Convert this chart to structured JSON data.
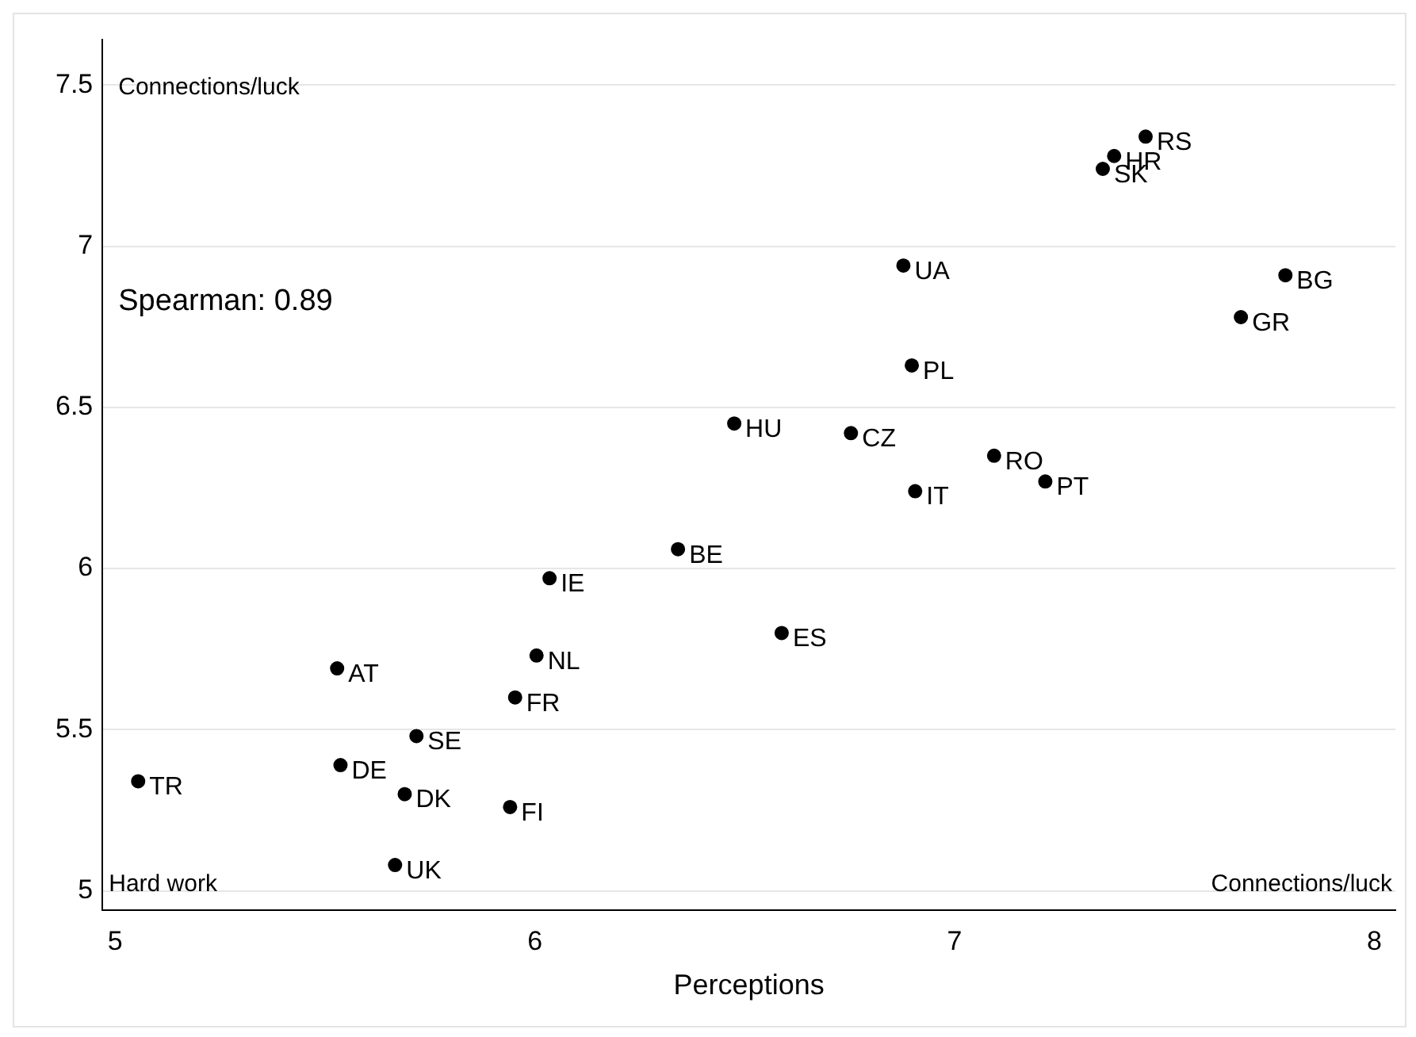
{
  "chart_data": {
    "type": "scatter",
    "xlabel": "Perceptions",
    "x": [
      7.455,
      7.38,
      7.353,
      6.878,
      7.788,
      7.682,
      6.898,
      6.475,
      6.753,
      7.094,
      7.216,
      6.906,
      6.341,
      6.035,
      6.588,
      6.004,
      5.529,
      5.953,
      5.718,
      5.537,
      5.055,
      5.69,
      5.941,
      5.667
    ],
    "values": [
      7.34,
      7.28,
      7.24,
      6.94,
      6.91,
      6.78,
      6.63,
      6.45,
      6.42,
      6.35,
      6.27,
      6.24,
      6.06,
      5.97,
      5.8,
      5.73,
      5.69,
      5.6,
      5.48,
      5.39,
      5.34,
      5.3,
      5.26,
      5.08
    ],
    "color": "#000000",
    "marker": "circle",
    "xlim": [
      4.97,
      8.05
    ],
    "xticks": [
      5,
      6,
      7,
      8
    ],
    "ylim": [
      4.94,
      7.64
    ],
    "yticks": [
      5,
      5.5,
      6,
      6.5,
      7,
      7.5
    ],
    "grid": "y",
    "annotations": [
      "Connections/luck",
      "Spearman: 0.89",
      "Hard work",
      "Connections/luck",
      {
        "text": "RS",
        "x": 7.455,
        "y": 7.34
      },
      {
        "text": "HR",
        "x": 7.38,
        "y": 7.28
      },
      {
        "text": "SK",
        "x": 7.353,
        "y": 7.24
      },
      {
        "text": "UA",
        "x": 6.878,
        "y": 6.94
      },
      {
        "text": "BG",
        "x": 7.788,
        "y": 6.91
      },
      {
        "text": "GR",
        "x": 7.682,
        "y": 6.78
      },
      {
        "text": "PL",
        "x": 6.898,
        "y": 6.63
      },
      {
        "text": "HU",
        "x": 6.475,
        "y": 6.45
      },
      {
        "text": "CZ",
        "x": 6.753,
        "y": 6.42
      },
      {
        "text": "RO",
        "x": 7.094,
        "y": 6.35
      },
      {
        "text": "PT",
        "x": 7.216,
        "y": 6.27
      },
      {
        "text": "IT",
        "x": 6.906,
        "y": 6.24
      },
      {
        "text": "BE",
        "x": 6.341,
        "y": 6.06
      },
      {
        "text": "IE",
        "x": 6.035,
        "y": 5.97
      },
      {
        "text": "ES",
        "x": 6.588,
        "y": 5.8
      },
      {
        "text": "NL",
        "x": 6.004,
        "y": 5.73
      },
      {
        "text": "AT",
        "x": 5.529,
        "y": 5.69
      },
      {
        "text": "FR",
        "x": 5.953,
        "y": 5.6
      },
      {
        "text": "SE",
        "x": 5.718,
        "y": 5.48
      },
      {
        "text": "DE",
        "x": 5.537,
        "y": 5.39
      },
      {
        "text": "TR",
        "x": 5.055,
        "y": 5.34
      },
      {
        "text": "DK",
        "x": 5.69,
        "y": 5.3
      },
      {
        "text": "FI",
        "x": 5.941,
        "y": 5.26
      },
      {
        "text": "UK",
        "x": 5.667,
        "y": 5.08
      }
    ]
  }
}
